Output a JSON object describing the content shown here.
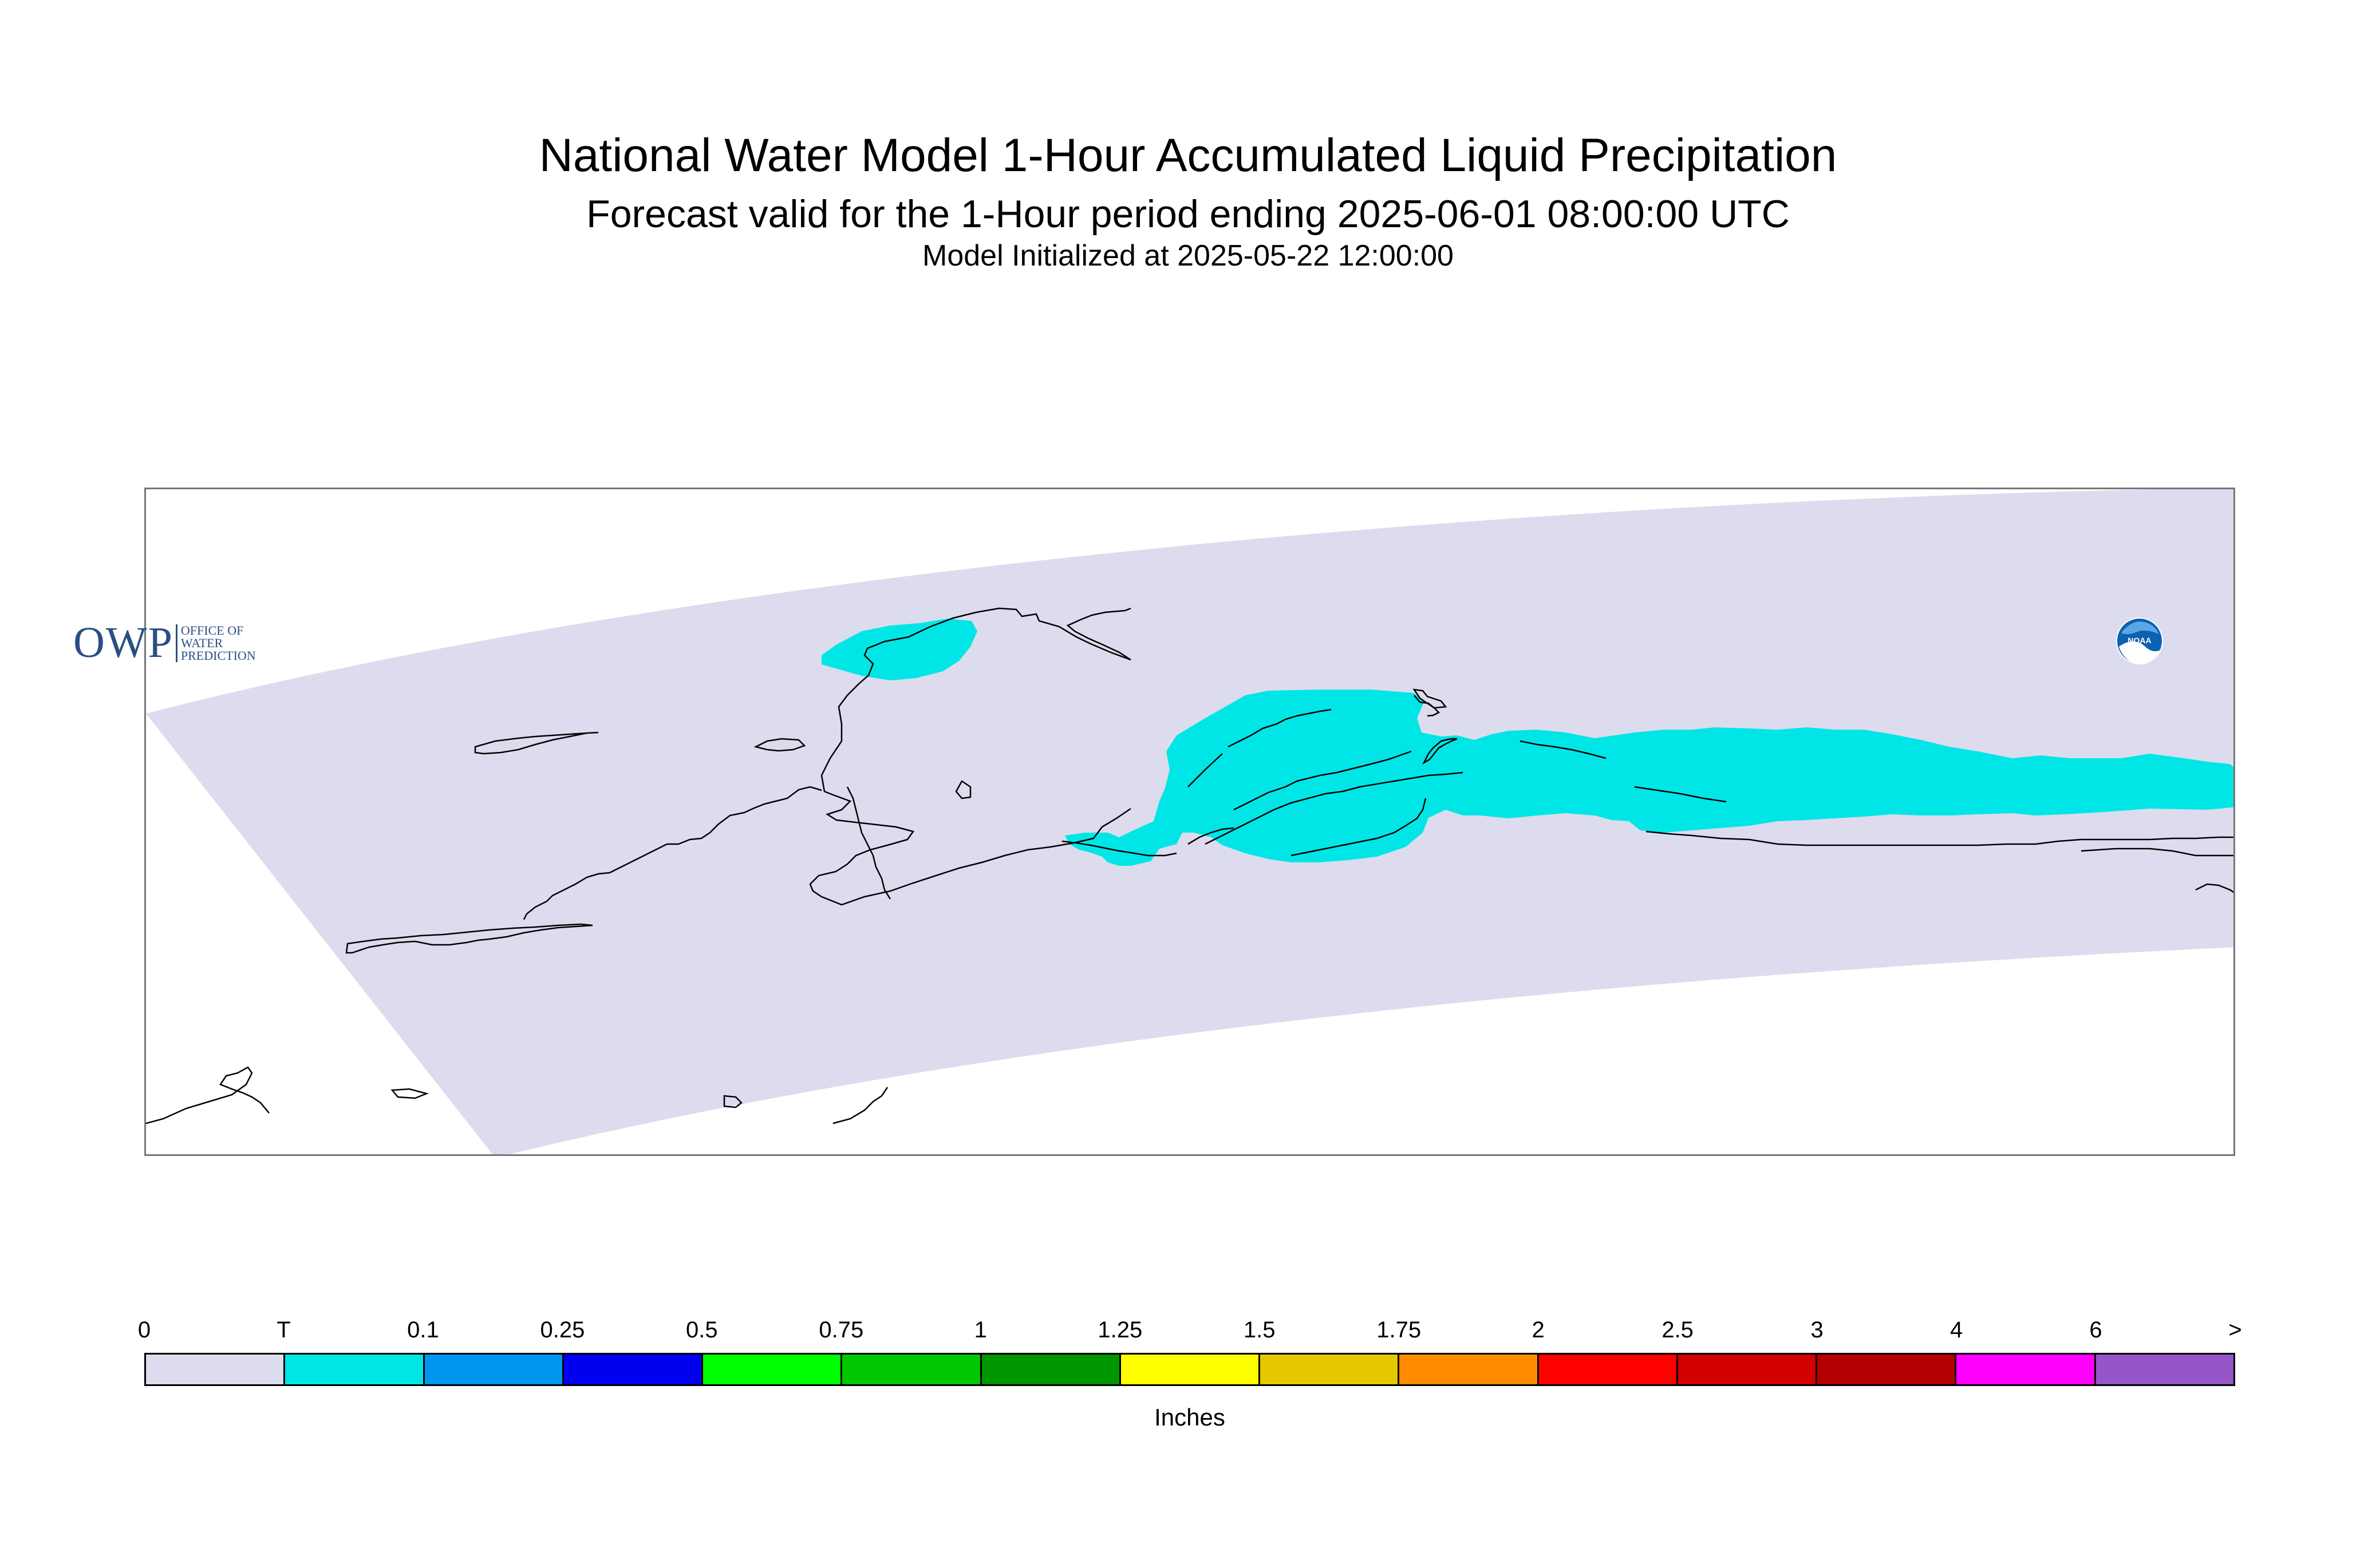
{
  "title": {
    "line1": "National Water Model 1-Hour Accumulated Liquid Precipitation",
    "line2": "Forecast valid for the 1-Hour period ending 2025-06-01 08:00:00 UTC",
    "line3": "Model Initialized at 2025-05-22 12:00:00"
  },
  "map": {
    "domain_color": "#dcdcee",
    "precip_color": "#00e6e6",
    "coastline_color": "#000000"
  },
  "logos": {
    "owp_big": "OWP",
    "owp_small": [
      "OFFICE OF",
      "WATER",
      "PREDICTION"
    ],
    "noaa_text": "NOAA"
  },
  "legend": {
    "labels": [
      "0",
      "T",
      "0.1",
      "0.25",
      "0.5",
      "0.75",
      "1",
      "1.25",
      "1.5",
      "1.75",
      "2",
      "2.5",
      "3",
      "4",
      "6",
      ">"
    ],
    "colors": [
      "#dcdcee",
      "#00e6e6",
      "#0096f0",
      "#0000f0",
      "#00ff00",
      "#00c800",
      "#009600",
      "#ffff00",
      "#e6c800",
      "#ff8c00",
      "#ff0000",
      "#d20000",
      "#b40000",
      "#ff00ff",
      "#9655c8"
    ],
    "units": "Inches"
  }
}
